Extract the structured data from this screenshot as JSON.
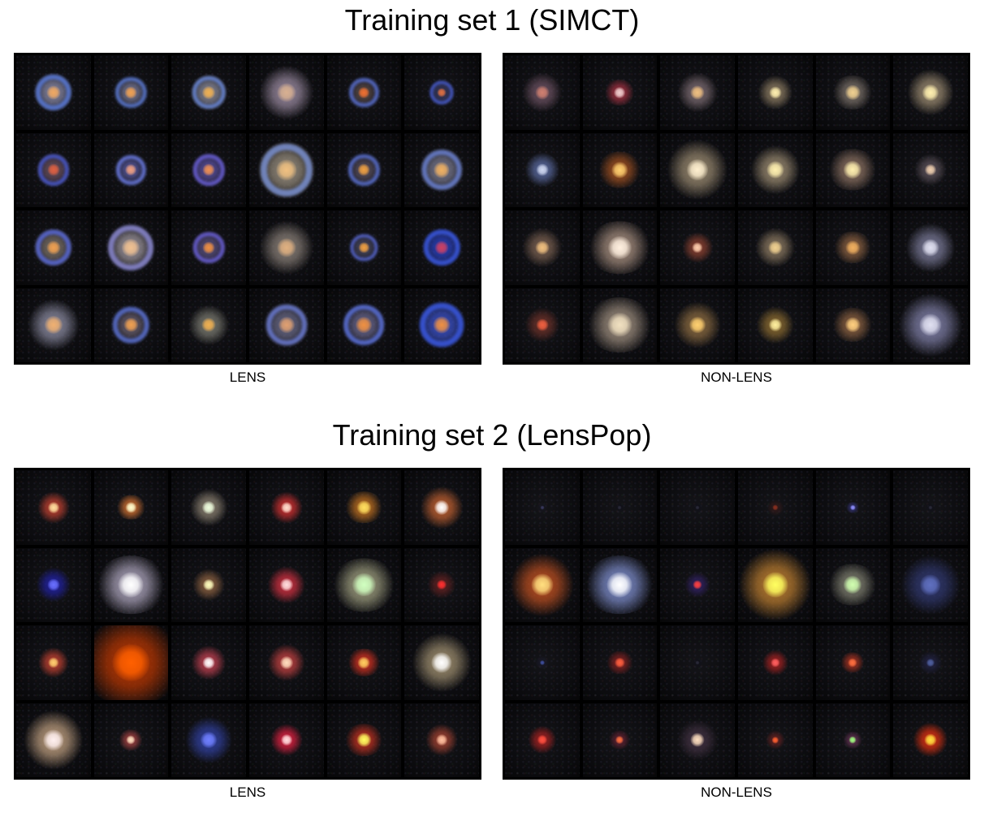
{
  "sections": [
    {
      "title": "Training set 1 (SIMCT)",
      "panels": [
        {
          "caption": "LENS",
          "cells": [
            {
              "core": "#f0a860",
              "halo": "#8a8aa8",
              "size": 0.34,
              "ring": "#5a7ad8"
            },
            {
              "core": "#f0a050",
              "halo": "#7a7a98",
              "size": 0.3,
              "ring": "#5a78d0"
            },
            {
              "core": "#f0b050",
              "halo": "#8a8a9a",
              "size": 0.32,
              "ring": "#6a88d8"
            },
            {
              "core": "#d8b090",
              "halo": "#9a8aa0",
              "size": 0.46,
              "ring": ""
            },
            {
              "core": "#f07030",
              "halo": "#5a4a48",
              "size": 0.28,
              "ring": "#5a70d0"
            },
            {
              "core": "#e07040",
              "halo": "#3a3a60",
              "size": 0.22,
              "ring": "#4a60d8"
            },
            {
              "core": "#e06040",
              "halo": "#6a5060",
              "size": 0.3,
              "ring": "#4a5ad0"
            },
            {
              "core": "#f0a080",
              "halo": "#5a5aa0",
              "size": 0.28,
              "ring": "#6a7ae0"
            },
            {
              "core": "#f09050",
              "halo": "#5a50a0",
              "size": 0.3,
              "ring": "#6a60d8"
            },
            {
              "core": "#f0c080",
              "halo": "#9a9080",
              "size": 0.5,
              "ring": "#7a90d0"
            },
            {
              "core": "#f0a040",
              "halo": "#5a5060",
              "size": 0.3,
              "ring": "#5a70d0"
            },
            {
              "core": "#f0b060",
              "halo": "#7a7a90",
              "size": 0.38,
              "ring": "#6a80d0"
            },
            {
              "core": "#f0a050",
              "halo": "#7a7068",
              "size": 0.34,
              "ring": "#5a6ad8"
            },
            {
              "core": "#f0c090",
              "halo": "#a098a0",
              "size": 0.44,
              "ring": "#8a88d0"
            },
            {
              "core": "#f09040",
              "halo": "#5a5080",
              "size": 0.3,
              "ring": "#6a60d8"
            },
            {
              "core": "#e0b080",
              "halo": "#8a8078",
              "size": 0.46,
              "ring": ""
            },
            {
              "core": "#f0a040",
              "halo": "#4a4860",
              "size": 0.26,
              "ring": "#5a6ad8"
            },
            {
              "core": "#d04060",
              "halo": "#2a40c0",
              "size": 0.34,
              "ring": "#3a58e0"
            },
            {
              "core": "#f0b070",
              "halo": "#8a8aa0",
              "size": 0.44,
              "ring": ""
            },
            {
              "core": "#f0a050",
              "halo": "#6a6070",
              "size": 0.34,
              "ring": "#5a70d0"
            },
            {
              "core": "#f0b050",
              "halo": "#7a7a70",
              "size": 0.34,
              "ring": ""
            },
            {
              "core": "#e0a070",
              "halo": "#6a6a88",
              "size": 0.4,
              "ring": "#6a7ad0"
            },
            {
              "core": "#f09040",
              "halo": "#6a6890",
              "size": 0.4,
              "ring": "#5a70d8"
            },
            {
              "core": "#f09040",
              "halo": "#3a50c8",
              "size": 0.42,
              "ring": "#3a58e0"
            }
          ]
        },
        {
          "caption": "NON-LENS",
          "cells": [
            {
              "core": "#d08070",
              "halo": "#6a5060",
              "size": 0.34,
              "ring": ""
            },
            {
              "core": "#f0d0d0",
              "halo": "#a03040",
              "size": 0.28,
              "ring": ""
            },
            {
              "core": "#f0c080",
              "halo": "#7a6a70",
              "size": 0.34,
              "ring": ""
            },
            {
              "core": "#fff0b0",
              "halo": "#8a7a60",
              "size": 0.3,
              "ring": ""
            },
            {
              "core": "#f0d090",
              "halo": "#7a7068",
              "size": 0.36,
              "ring": ""
            },
            {
              "core": "#fff0b0",
              "halo": "#9a8a70",
              "size": 0.4,
              "ring": ""
            },
            {
              "core": "#d0d8f0",
              "halo": "#5a6aa0",
              "size": 0.3,
              "ring": ""
            },
            {
              "core": "#ffd070",
              "halo": "#a05020",
              "size": 0.38,
              "ring": ""
            },
            {
              "core": "#fff0d0",
              "halo": "#9a8a70",
              "size": 0.52,
              "ring": ""
            },
            {
              "core": "#fff0b0",
              "halo": "#9a8a70",
              "size": 0.42,
              "ring": ""
            },
            {
              "core": "#fff0b0",
              "halo": "#8a7060",
              "size": 0.44,
              "ring": ""
            },
            {
              "core": "#f0d0b0",
              "halo": "#5a5058",
              "size": 0.28,
              "ring": ""
            },
            {
              "core": "#f0c080",
              "halo": "#7a6050",
              "size": 0.34,
              "ring": ""
            },
            {
              "core": "#fff0e0",
              "halo": "#a89080",
              "size": 0.56,
              "ring": ""
            },
            {
              "core": "#ffd0b0",
              "halo": "#8a4030",
              "size": 0.26,
              "ring": ""
            },
            {
              "core": "#f0d090",
              "halo": "#8a7860",
              "size": 0.34,
              "ring": ""
            },
            {
              "core": "#f0b060",
              "halo": "#8a6040",
              "size": 0.34,
              "ring": ""
            },
            {
              "core": "#e0e0f0",
              "halo": "#7a7a98",
              "size": 0.42,
              "ring": ""
            },
            {
              "core": "#f06040",
              "halo": "#6a3028",
              "size": 0.3,
              "ring": ""
            },
            {
              "core": "#f0e0c0",
              "halo": "#a09080",
              "size": 0.58,
              "ring": ""
            },
            {
              "core": "#ffd070",
              "halo": "#8a6a40",
              "size": 0.4,
              "ring": ""
            },
            {
              "core": "#fff0a0",
              "halo": "#8a6a30",
              "size": 0.32,
              "ring": ""
            },
            {
              "core": "#ffd080",
              "halo": "#8a6040",
              "size": 0.36,
              "ring": ""
            },
            {
              "core": "#e0e0f0",
              "halo": "#8080a8",
              "size": 0.54,
              "ring": ""
            }
          ]
        }
      ]
    },
    {
      "title": "Training set 2 (LensPop)",
      "panels": [
        {
          "caption": "LENS",
          "cells": [
            {
              "core": "#ffe0a0",
              "halo": "#c04030",
              "size": 0.28,
              "ring": ""
            },
            {
              "core": "#ffffd0",
              "halo": "#d07030",
              "size": 0.26,
              "ring": ""
            },
            {
              "core": "#f0ffe0",
              "halo": "#8a8070",
              "size": 0.32,
              "ring": ""
            },
            {
              "core": "#ffe0d0",
              "halo": "#d03030",
              "size": 0.28,
              "ring": ""
            },
            {
              "core": "#ffe060",
              "halo": "#c07020",
              "size": 0.34,
              "ring": ""
            },
            {
              "core": "#ffffff",
              "halo": "#c06030",
              "size": 0.36,
              "ring": ""
            },
            {
              "core": "#6a70ff",
              "halo": "#2020a0",
              "size": 0.3,
              "ring": ""
            },
            {
              "core": "#ffffff",
              "halo": "#b0a8c0",
              "size": 0.62,
              "ring": ""
            },
            {
              "core": "#ffffc0",
              "halo": "#8a6040",
              "size": 0.28,
              "ring": ""
            },
            {
              "core": "#ffe0e0",
              "halo": "#d03040",
              "size": 0.32,
              "ring": ""
            },
            {
              "core": "#d0ffc0",
              "halo": "#a0a080",
              "size": 0.56,
              "ring": ""
            },
            {
              "core": "#ff3030",
              "halo": "#602020",
              "size": 0.24,
              "ring": ""
            },
            {
              "core": "#ffd070",
              "halo": "#c04030",
              "size": 0.26,
              "ring": ""
            },
            {
              "core": "#ff6000",
              "halo": "#c03800",
              "size": 0.9,
              "ring": ""
            },
            {
              "core": "#ffffff",
              "halo": "#c04050",
              "size": 0.3,
              "ring": ""
            },
            {
              "core": "#ffe0c0",
              "halo": "#c04040",
              "size": 0.32,
              "ring": ""
            },
            {
              "core": "#ffd060",
              "halo": "#d03020",
              "size": 0.3,
              "ring": ""
            },
            {
              "core": "#ffffff",
              "halo": "#a09070",
              "size": 0.5,
              "ring": ""
            },
            {
              "core": "#fff0f0",
              "halo": "#c0a080",
              "size": 0.5,
              "ring": ""
            },
            {
              "core": "#ffe0c0",
              "halo": "#a04040",
              "size": 0.22,
              "ring": ""
            },
            {
              "core": "#7080ff",
              "halo": "#3040a0",
              "size": 0.4,
              "ring": ""
            },
            {
              "core": "#ffe0e0",
              "halo": "#e02040",
              "size": 0.28,
              "ring": ""
            },
            {
              "core": "#ffff60",
              "halo": "#c03020",
              "size": 0.34,
              "ring": ""
            },
            {
              "core": "#ffc0a0",
              "halo": "#a04030",
              "size": 0.28,
              "ring": ""
            }
          ]
        },
        {
          "caption": "NON-LENS",
          "cells": [
            {
              "core": "#3a3a60",
              "halo": "#15151f",
              "size": 0.1,
              "ring": ""
            },
            {
              "core": "#2a2a3a",
              "halo": "#101018",
              "size": 0.1,
              "ring": ""
            },
            {
              "core": "#2a2a3a",
              "halo": "#101018",
              "size": 0.1,
              "ring": ""
            },
            {
              "core": "#8a3020",
              "halo": "#301818",
              "size": 0.14,
              "ring": ""
            },
            {
              "core": "#9090ff",
              "halo": "#303070",
              "size": 0.12,
              "ring": ""
            },
            {
              "core": "#2a2a3a",
              "halo": "#101018",
              "size": 0.1,
              "ring": ""
            },
            {
              "core": "#ffe080",
              "halo": "#c05020",
              "size": 0.54,
              "ring": ""
            },
            {
              "core": "#ffffff",
              "halo": "#8090d0",
              "size": 0.62,
              "ring": ""
            },
            {
              "core": "#ff4040",
              "halo": "#302060",
              "size": 0.22,
              "ring": ""
            },
            {
              "core": "#ffff60",
              "halo": "#c08030",
              "size": 0.62,
              "ring": ""
            },
            {
              "core": "#d0ffb0",
              "halo": "#808070",
              "size": 0.44,
              "ring": ""
            },
            {
              "core": "#6070c0",
              "halo": "#303870",
              "size": 0.5,
              "ring": ""
            },
            {
              "core": "#4050a0",
              "halo": "#181828",
              "size": 0.12,
              "ring": ""
            },
            {
              "core": "#ff6040",
              "halo": "#802020",
              "size": 0.24,
              "ring": ""
            },
            {
              "core": "#2a2a3a",
              "halo": "#101018",
              "size": 0.1,
              "ring": ""
            },
            {
              "core": "#ff6060",
              "halo": "#a02020",
              "size": 0.22,
              "ring": ""
            },
            {
              "core": "#ff7040",
              "halo": "#a03020",
              "size": 0.22,
              "ring": ""
            },
            {
              "core": "#5060a0",
              "halo": "#202040",
              "size": 0.2,
              "ring": ""
            },
            {
              "core": "#ff5040",
              "halo": "#a02020",
              "size": 0.24,
              "ring": ""
            },
            {
              "core": "#ff7040",
              "halo": "#602030",
              "size": 0.2,
              "ring": ""
            },
            {
              "core": "#ffe0c0",
              "halo": "#403040",
              "size": 0.34,
              "ring": ""
            },
            {
              "core": "#ff6030",
              "halo": "#602020",
              "size": 0.16,
              "ring": ""
            },
            {
              "core": "#a0ff80",
              "halo": "#603050",
              "size": 0.18,
              "ring": ""
            },
            {
              "core": "#ffe040",
              "halo": "#e03010",
              "size": 0.3,
              "ring": ""
            }
          ]
        }
      ]
    }
  ]
}
